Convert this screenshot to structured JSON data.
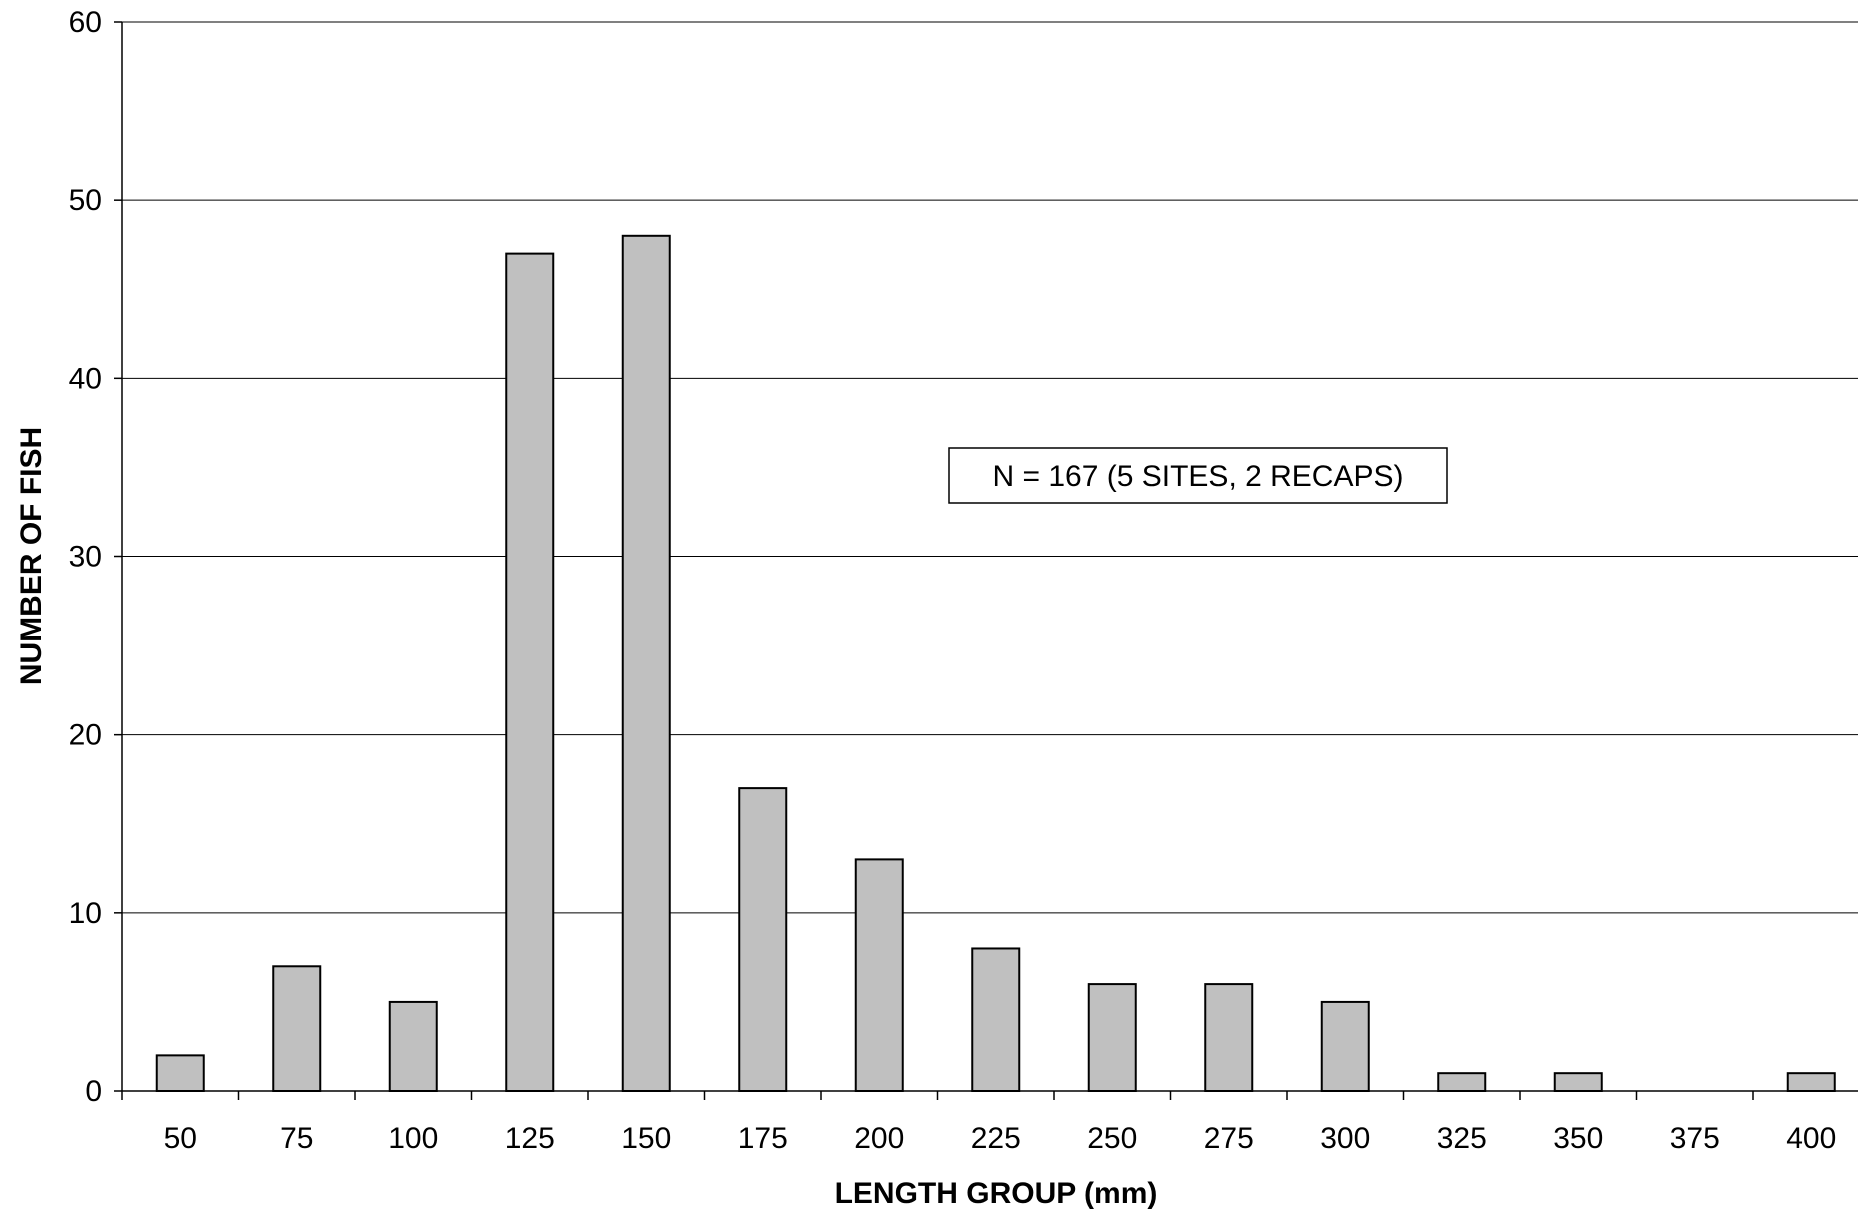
{
  "chart_data": {
    "type": "bar",
    "title": "",
    "xlabel": "LENGTH GROUP (mm)",
    "ylabel": "NUMBER OF FISH",
    "categories": [
      "50",
      "75",
      "100",
      "125",
      "150",
      "175",
      "200",
      "225",
      "250",
      "275",
      "300",
      "325",
      "350",
      "375",
      "400"
    ],
    "values": [
      2,
      7,
      5,
      47,
      48,
      17,
      13,
      8,
      6,
      6,
      5,
      1,
      1,
      0,
      1
    ],
    "ylim": [
      0,
      60
    ],
    "yticks": [
      "0",
      "10",
      "20",
      "30",
      "40",
      "50",
      "60"
    ],
    "grid": true,
    "legend": "none",
    "annotation": "N = 167 (5 SITES, 2 RECAPS)",
    "colors": {
      "bar_fill": "#c0c0c0",
      "bar_stroke": "#000000",
      "grid": "#000000"
    }
  }
}
